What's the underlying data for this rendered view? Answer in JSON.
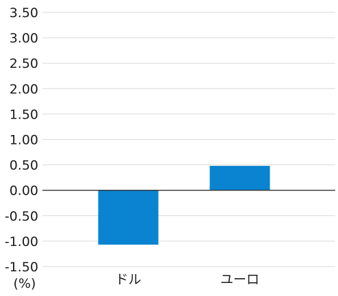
{
  "chart_data": {
    "type": "bar",
    "categories": [
      "ドル",
      "ユーロ"
    ],
    "series": [
      {
        "values": [
          -1.07,
          0.48
        ]
      }
    ],
    "ylim": [
      -1.5,
      3.5
    ],
    "yticks": [
      "3.50",
      "3.00",
      "2.50",
      "2.00",
      "1.50",
      "1.00",
      "0.50",
      "0.00",
      "-0.50",
      "-1.00",
      "-1.50"
    ],
    "yunit": "(%)",
    "grid": true,
    "legend": "none",
    "colors": {
      "bar": "#0a84d0",
      "grid": "#d9d9d9",
      "zero_line": "#333333",
      "text": "#1a1a1a"
    }
  }
}
